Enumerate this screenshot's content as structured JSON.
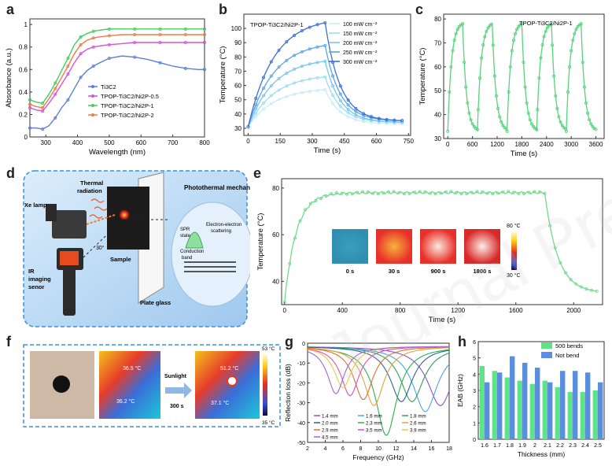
{
  "panels": {
    "a": {
      "label": "a"
    },
    "b": {
      "label": "b",
      "title": "TPOP-Ti3C2/Ni2P-1"
    },
    "c": {
      "label": "c",
      "title": "TPOP-Ti3C2/Ni2P-1"
    },
    "d": {
      "label": "d",
      "title": "Photothermal mechanisms",
      "labels": {
        "xe": "Xe lamp",
        "thermal": "Thermal",
        "radiation": "radiation",
        "angle": "30°",
        "ir1": "IR",
        "ir2": "imaging",
        "ir3": "senor",
        "sample": "Sample",
        "plate": "Plate glass",
        "spr1": "SPR",
        "spr2": "state",
        "ee1": "Electron-electron",
        "ee2": "scattering",
        "cb1": "Conduction",
        "cb2": "band"
      }
    },
    "e": {
      "label": "e"
    },
    "f": {
      "label": "f",
      "temps": {
        "t1": "36.5 °C",
        "t2": "36.2 °C",
        "t3": "51.2 °C",
        "t4": "37.1 °C"
      },
      "sun": "Sunlight",
      "time": "300 s",
      "scale_hi": "53 °C",
      "scale_lo": "35 °C"
    },
    "g": {
      "label": "g"
    },
    "h": {
      "label": "h"
    }
  },
  "chart_data": [
    {
      "id": "a",
      "type": "line",
      "xlabel": "Wavelength (nm)",
      "ylabel": "Absorbance (a.u.)",
      "xlim": [
        250,
        800
      ],
      "ylim": [
        0.0,
        1.05
      ],
      "xticks": [
        300,
        400,
        500,
        600,
        700,
        800
      ],
      "yticks": [
        0.0,
        0.2,
        0.4,
        0.6,
        0.8,
        1.0
      ],
      "x": [
        250,
        270,
        290,
        310,
        330,
        350,
        370,
        390,
        410,
        430,
        450,
        470,
        500,
        540,
        580,
        620,
        660,
        700,
        740,
        780,
        800
      ],
      "series": [
        {
          "name": "Ti3C2",
          "color": "#5b7fd9",
          "values": [
            0.08,
            0.08,
            0.07,
            0.1,
            0.17,
            0.26,
            0.33,
            0.43,
            0.53,
            0.59,
            0.63,
            0.66,
            0.7,
            0.72,
            0.71,
            0.69,
            0.66,
            0.63,
            0.61,
            0.6,
            0.6
          ]
        },
        {
          "name": "TPOP-Ti3C2/Ni2P-0.5",
          "color": "#d653d6",
          "values": [
            0.26,
            0.24,
            0.23,
            0.3,
            0.38,
            0.47,
            0.56,
            0.66,
            0.74,
            0.78,
            0.8,
            0.81,
            0.82,
            0.83,
            0.84,
            0.84,
            0.84,
            0.84,
            0.84,
            0.84,
            0.84
          ]
        },
        {
          "name": "TPOP-Ti3C2/Ni2P-1",
          "color": "#3fcf5e",
          "values": [
            0.33,
            0.31,
            0.3,
            0.38,
            0.48,
            0.59,
            0.7,
            0.82,
            0.89,
            0.92,
            0.94,
            0.95,
            0.96,
            0.96,
            0.96,
            0.96,
            0.96,
            0.96,
            0.96,
            0.96,
            0.96
          ]
        },
        {
          "name": "TPOP-Ti3C2/Ni2P-2",
          "color": "#f07a45",
          "values": [
            0.29,
            0.27,
            0.26,
            0.34,
            0.43,
            0.53,
            0.63,
            0.74,
            0.82,
            0.86,
            0.88,
            0.89,
            0.9,
            0.91,
            0.91,
            0.91,
            0.91,
            0.91,
            0.91,
            0.91,
            0.91
          ]
        }
      ]
    },
    {
      "id": "b",
      "type": "line",
      "xlabel": "Time (s)",
      "ylabel": "Temperature (°C)",
      "xlim": [
        -20,
        760
      ],
      "ylim": [
        25,
        110
      ],
      "xticks": [
        0,
        150,
        300,
        450,
        600,
        750
      ],
      "yticks": [
        30,
        40,
        50,
        60,
        70,
        80,
        90,
        100
      ],
      "series": [
        {
          "name": "100 mW cm⁻²",
          "color": "#c9ecf7",
          "peak": 57,
          "end": 33
        },
        {
          "name": "150 mW cm⁻²",
          "color": "#9fdcf2",
          "peak": 66,
          "end": 34
        },
        {
          "name": "200 mW cm⁻²",
          "color": "#79c6ee",
          "peak": 77,
          "end": 34
        },
        {
          "name": "250 mW cm⁻²",
          "color": "#5aa4e6",
          "peak": 88,
          "end": 35
        },
        {
          "name": "300 mW cm⁻²",
          "color": "#3b6fd6",
          "peak": 104,
          "end": 35
        }
      ]
    },
    {
      "id": "c",
      "type": "line",
      "xlabel": "Time (s)",
      "ylabel": "Temperature (°C)",
      "xlim": [
        -100,
        3800
      ],
      "ylim": [
        30,
        82
      ],
      "xticks": [
        0,
        600,
        1200,
        1800,
        2400,
        3000,
        3600
      ],
      "yticks": [
        30,
        40,
        50,
        60,
        70,
        80
      ],
      "cycles": 5,
      "max": 78,
      "min": 33,
      "color": "#57d37a"
    },
    {
      "id": "e",
      "type": "line",
      "xlabel": "Time (s)",
      "ylabel": "Temperature (°C)",
      "xlim": [
        -20,
        2200
      ],
      "ylim": [
        30,
        84
      ],
      "xticks": [
        0,
        400,
        800,
        1200,
        1600,
        2000
      ],
      "yticks": [
        40,
        60,
        80
      ],
      "plateau": 78,
      "start": 31,
      "end": 35,
      "off": 1800,
      "color": "#6fdb8c",
      "insets": [
        "0 s",
        "30 s",
        "900 s",
        "1800 s"
      ],
      "scale_hi": "80 °C",
      "scale_lo": "30 °C"
    },
    {
      "id": "g",
      "type": "line",
      "xlabel": "Frequency (GHz)",
      "ylabel": "Reflection loss (dB)",
      "xlim": [
        2,
        18
      ],
      "ylim": [
        -50,
        0
      ],
      "xticks": [
        2,
        4,
        6,
        8,
        10,
        12,
        14,
        16,
        18
      ],
      "yticks": [
        0,
        -10,
        -20,
        -30,
        -40,
        -50
      ],
      "series": [
        {
          "name": "1.4 mm",
          "color": "#8a52c7",
          "f0": 17.0,
          "depth": -30
        },
        {
          "name": "1.6 mm",
          "color": "#4aa6e8",
          "f0": 15.3,
          "depth": -33
        },
        {
          "name": "1.8 mm",
          "color": "#2e9f5a",
          "f0": 13.8,
          "depth": -28
        },
        {
          "name": "2.0 mm",
          "color": "#2c5fa8",
          "f0": 12.6,
          "depth": -28
        },
        {
          "name": "2.3 mm",
          "color": "#2bb24c",
          "f0": 10.9,
          "depth": -45
        },
        {
          "name": "2.6 mm",
          "color": "#e8a03b",
          "f0": 9.5,
          "depth": -30
        },
        {
          "name": "2.9 mm",
          "color": "#e06f2c",
          "f0": 8.3,
          "depth": -27
        },
        {
          "name": "3.5 mm",
          "color": "#e84bb6",
          "f0": 6.8,
          "depth": -25
        },
        {
          "name": "3.9 mm",
          "color": "#e8cc3b",
          "f0": 6.0,
          "depth": -21
        },
        {
          "name": "4.5 mm",
          "color": "#a064d8",
          "f0": 5.2,
          "depth": -24
        }
      ]
    },
    {
      "id": "h",
      "type": "bar",
      "xlabel": "Thickness (mm)",
      "ylabel": "EAB (GHz)",
      "ylim": [
        0,
        6
      ],
      "yticks": [
        0,
        1,
        2,
        3,
        4,
        5,
        6
      ],
      "categories": [
        "1.6",
        "1.7",
        "1.8",
        "1.9",
        "2",
        "2.1",
        "2.2",
        "2.3",
        "2.4",
        "2.5"
      ],
      "series": [
        {
          "name": "500 bends",
          "color": "#5fe389",
          "values": [
            4.5,
            4.2,
            3.8,
            3.6,
            3.4,
            3.6,
            3.2,
            2.9,
            2.9,
            3.0
          ]
        },
        {
          "name": "Not bend",
          "color": "#5b8de0",
          "values": [
            3.5,
            4.1,
            5.1,
            4.7,
            4.4,
            3.5,
            4.2,
            4.2,
            4.1,
            3.5
          ]
        }
      ]
    }
  ]
}
